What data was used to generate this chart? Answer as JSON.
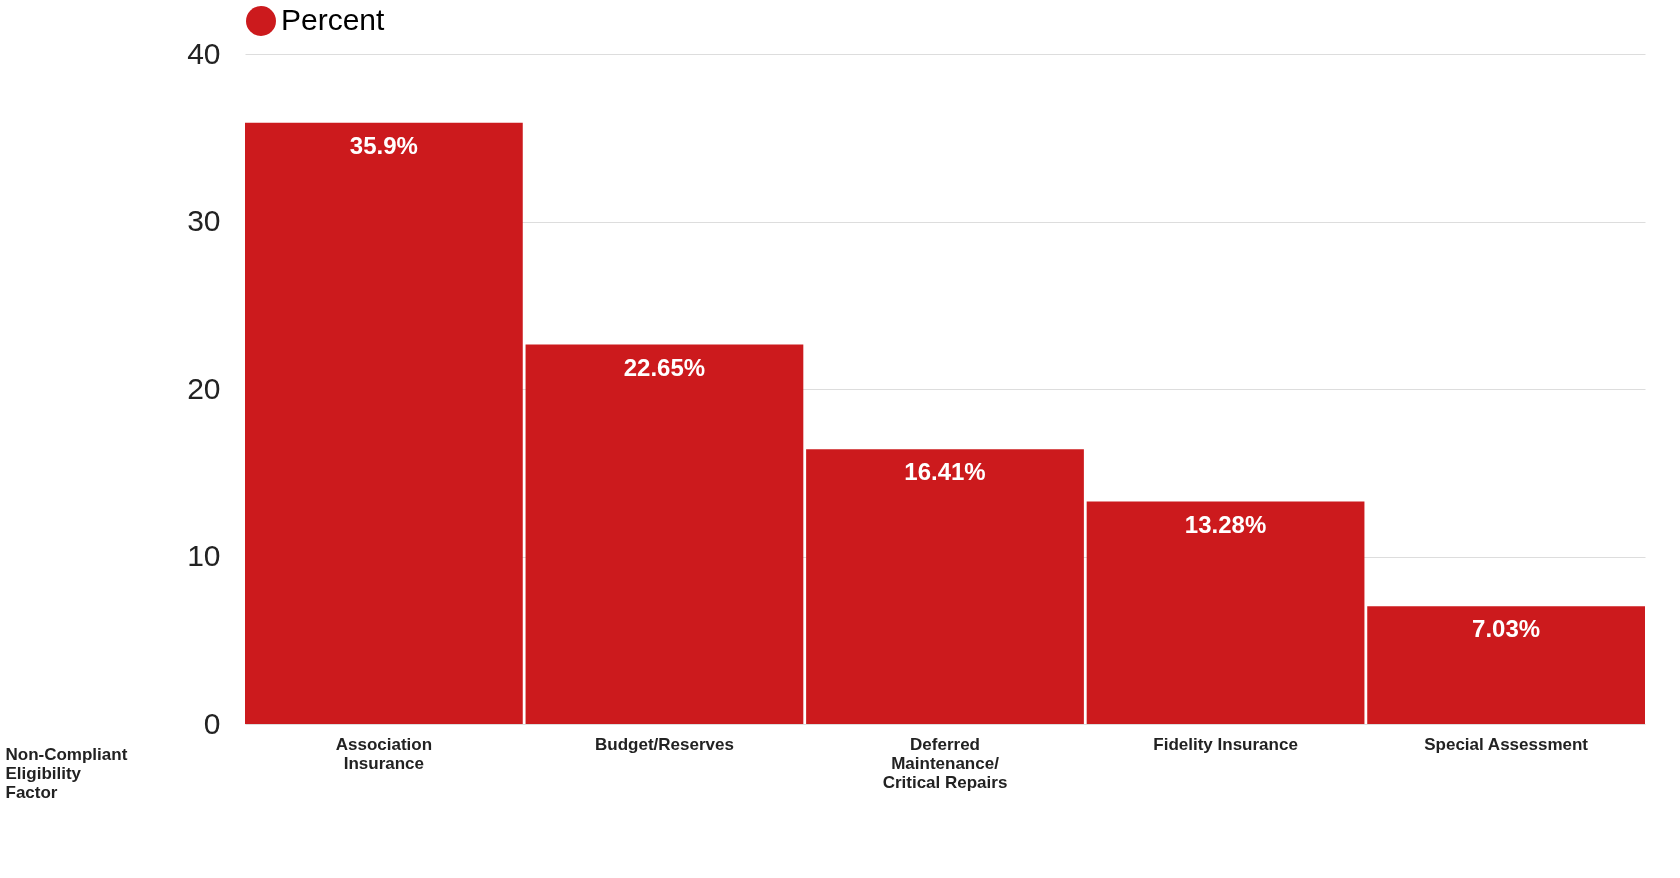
{
  "chart_data": {
    "type": "bar",
    "categories": [
      "Association Insurance",
      "Budget/Reserves",
      "Deferred Maintenance/ Critical Repairs",
      "Fidelity Insurance",
      "Special Assessment"
    ],
    "series": [
      {
        "name": "Percent",
        "color": "#cc1a1d",
        "values": [
          35.9,
          22.65,
          16.41,
          13.28,
          7.03
        ],
        "value_labels": [
          "35.9%",
          "22.65%",
          "16.41%",
          "13.28%",
          "7.03%"
        ]
      }
    ],
    "xlabel": "Non-Compliant Eligibility Factor",
    "ylim": [
      0,
      40
    ],
    "yticks": [
      0,
      10,
      20,
      30,
      40
    ],
    "grid": "y",
    "legend": "top"
  }
}
